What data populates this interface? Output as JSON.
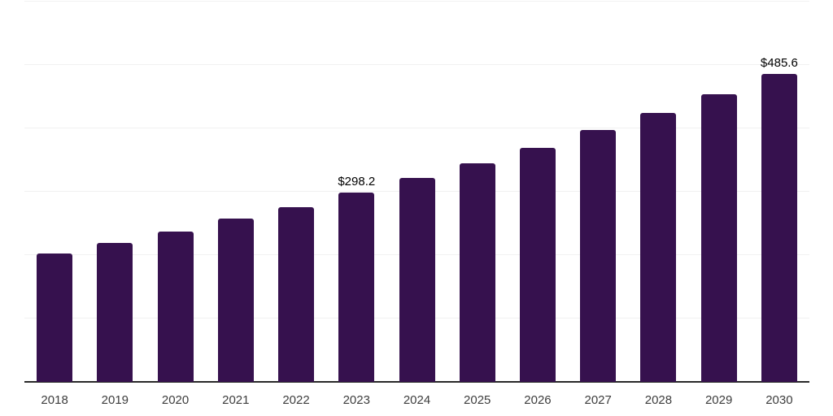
{
  "chart_data": {
    "type": "bar",
    "title": "",
    "xlabel": "",
    "ylabel": "",
    "categories": [
      "2018",
      "2019",
      "2020",
      "2021",
      "2022",
      "2023",
      "2024",
      "2025",
      "2026",
      "2027",
      "2028",
      "2029",
      "2030"
    ],
    "values": [
      202.7,
      219.2,
      237.0,
      257.4,
      275.3,
      298.2,
      321.2,
      345.4,
      369.6,
      397.6,
      424.4,
      453.7,
      485.6
    ],
    "value_labels": {
      "2023": "$298.2",
      "2030": "$485.6"
    },
    "ylim": [
      0,
      600
    ],
    "gridline_values": [
      100,
      200,
      300,
      400,
      500,
      600
    ],
    "grid_on": true,
    "legend_position": "none",
    "colors": {
      "bar": "#36114e",
      "gridline": "#f1f1f1",
      "axis_line": "#282828",
      "tick_label": "#3d3d3d",
      "value_label": "#000000",
      "background": "#ffffff"
    }
  }
}
